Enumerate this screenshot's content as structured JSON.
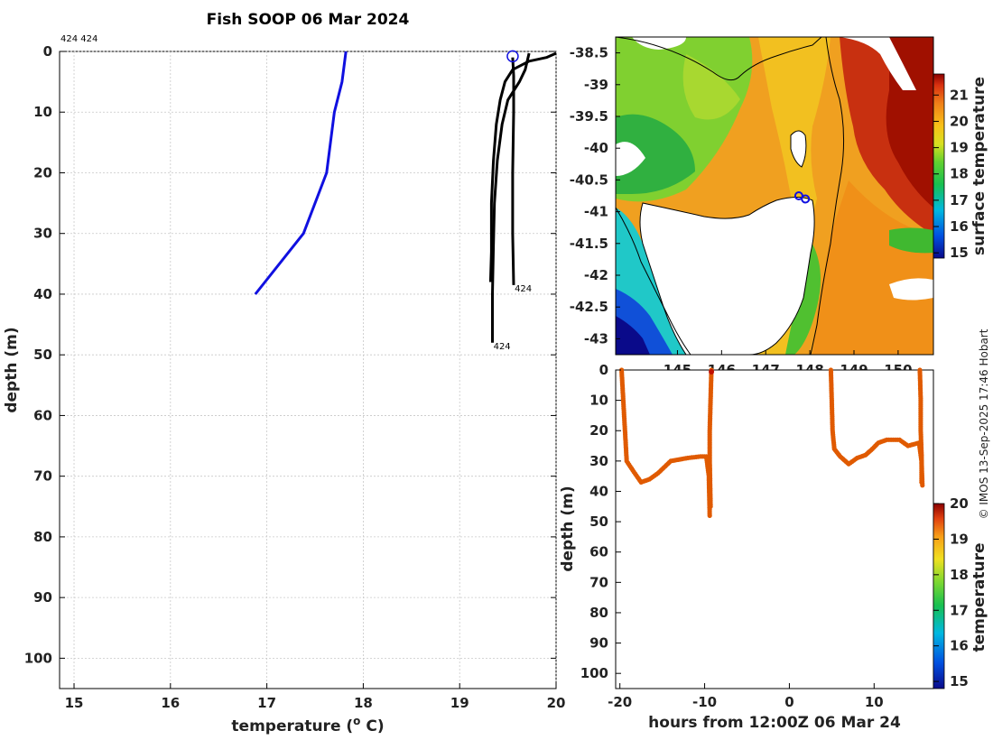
{
  "title": "Fish SOOP 06 Mar 2024",
  "profile_label_top": "424 424",
  "credit": "© IMOS 13-Sep-2025 17:46 Hobart",
  "colors": {
    "blue_profile": "#1010e0",
    "black_profile": "#000000",
    "section": "#e05a00"
  },
  "chart_data": [
    {
      "name": "temperature-profiles",
      "type": "line",
      "xlabel": "temperature (",
      "xlabel_sup": "o",
      "xlabel_end": " C)",
      "ylabel": "depth (m)",
      "xlim": [
        14.85,
        20
      ],
      "ylim": [
        105,
        0
      ],
      "xticks": [
        15,
        16,
        17,
        18,
        19,
        20
      ],
      "yticks": [
        0,
        10,
        20,
        30,
        40,
        50,
        60,
        70,
        80,
        90,
        100
      ],
      "series": [
        {
          "name": "blue",
          "color": "#1010e0",
          "points": [
            [
              17.82,
              0
            ],
            [
              17.78,
              5
            ],
            [
              17.7,
              10
            ],
            [
              17.62,
              20
            ],
            [
              17.38,
              30
            ],
            [
              16.88,
              40
            ]
          ]
        },
        {
          "name": "black-1",
          "color": "#000000",
          "points": [
            [
              20.0,
              0.3
            ],
            [
              19.9,
              1
            ],
            [
              19.72,
              1.6
            ],
            [
              19.55,
              3
            ],
            [
              19.47,
              5
            ],
            [
              19.42,
              8
            ],
            [
              19.38,
              12
            ],
            [
              19.35,
              18
            ],
            [
              19.33,
              25
            ],
            [
              19.33,
              33
            ],
            [
              19.32,
              38
            ]
          ]
        },
        {
          "name": "black-2",
          "color": "#000000",
          "points": [
            [
              19.72,
              0.3
            ],
            [
              19.68,
              3
            ],
            [
              19.62,
              5
            ],
            [
              19.5,
              8
            ],
            [
              19.44,
              12
            ],
            [
              19.39,
              18
            ],
            [
              19.36,
              25
            ],
            [
              19.35,
              32
            ],
            [
              19.34,
              40
            ],
            [
              19.34,
              48
            ]
          ]
        },
        {
          "name": "black-3",
          "color": "#000000",
          "points": [
            [
              19.55,
              1
            ],
            [
              19.56,
              4
            ],
            [
              19.56,
              10
            ],
            [
              19.55,
              20
            ],
            [
              19.55,
              30
            ],
            [
              19.56,
              38.5
            ]
          ]
        }
      ],
      "annotations": [
        {
          "text": "424",
          "x": 19.57,
          "y": 39
        },
        {
          "text": "424",
          "x": 19.35,
          "y": 48.5
        }
      ],
      "marker": {
        "x": 19.55,
        "y": 0.8
      }
    },
    {
      "name": "sst-map",
      "type": "heatmap",
      "colorbar_label": "surface temperature",
      "colorbar_ticks": [
        15,
        16,
        17,
        18,
        19,
        20,
        21
      ],
      "colorbar_range": [
        14.8,
        21.8
      ],
      "lat_ticks": [
        "-38.5",
        "-39",
        "-39.5",
        "-40",
        "-40.5",
        "-41",
        "-41.5",
        "-42",
        "-42.5",
        "-43"
      ],
      "lat_values": [
        -38.5,
        -39,
        -39.5,
        -40,
        -40.5,
        -41,
        -41.5,
        -42,
        -42.5,
        -43
      ],
      "lat_range": [
        -38.25,
        -43.25
      ],
      "lon_ticks": [
        "145",
        "146",
        "147",
        "148",
        "149",
        "150"
      ],
      "lon_values": [
        145,
        146,
        147,
        148,
        149,
        150
      ],
      "lon_range": [
        143.6,
        150.8
      ],
      "markers": [
        [
          147.75,
          -40.75
        ],
        [
          147.9,
          -40.8
        ]
      ]
    },
    {
      "name": "temperature-section",
      "type": "scatter",
      "xlabel": "hours from 12:00Z 06 Mar 24",
      "ylabel": "depth (m)",
      "xlim": [
        -20.5,
        17
      ],
      "ylim": [
        105,
        0
      ],
      "xticks": [
        -20,
        -10,
        0,
        10
      ],
      "yticks": [
        0,
        10,
        20,
        30,
        40,
        50,
        60,
        70,
        80,
        90,
        100
      ],
      "colorbar_label": "temperature",
      "colorbar_ticks": [
        15,
        16,
        17,
        18,
        19,
        20
      ],
      "colorbar_range": [
        14.8,
        20
      ],
      "segments": [
        {
          "points": [
            [
              -19.8,
              0
            ],
            [
              -19.6,
              10
            ],
            [
              -19.4,
              20
            ],
            [
              -19.2,
              30
            ],
            [
              -18.5,
              33
            ],
            [
              -17.5,
              37
            ],
            [
              -16.5,
              36
            ],
            [
              -15.5,
              34
            ],
            [
              -14,
              30
            ],
            [
              -12,
              29
            ],
            [
              -10.5,
              28.5
            ],
            [
              -9.8,
              28.5
            ],
            [
              -9.5,
              35
            ],
            [
              -9.4,
              48
            ]
          ]
        },
        {
          "points": [
            [
              -9.2,
              0
            ],
            [
              -9.3,
              10
            ],
            [
              -9.4,
              20
            ],
            [
              -9.4,
              30
            ],
            [
              -9.3,
              45
            ]
          ]
        },
        {
          "points": [
            [
              4.9,
              0
            ],
            [
              5.0,
              10
            ],
            [
              5.1,
              20
            ],
            [
              5.3,
              26
            ],
            [
              6.0,
              28.5
            ],
            [
              7.0,
              31
            ],
            [
              8.0,
              29
            ],
            [
              9.0,
              28
            ],
            [
              9.8,
              26
            ],
            [
              10.5,
              24
            ],
            [
              11.5,
              23
            ],
            [
              13,
              23
            ],
            [
              14,
              25
            ],
            [
              15.3,
              24
            ],
            [
              15.6,
              30
            ],
            [
              15.7,
              38
            ]
          ]
        },
        {
          "points": [
            [
              15.4,
              0
            ],
            [
              15.5,
              10
            ],
            [
              15.5,
              20
            ],
            [
              15.6,
              28
            ],
            [
              15.6,
              37
            ]
          ]
        }
      ],
      "surface_points": [
        [
          -9.2,
          0
        ]
      ],
      "section_value": 19.6
    }
  ]
}
